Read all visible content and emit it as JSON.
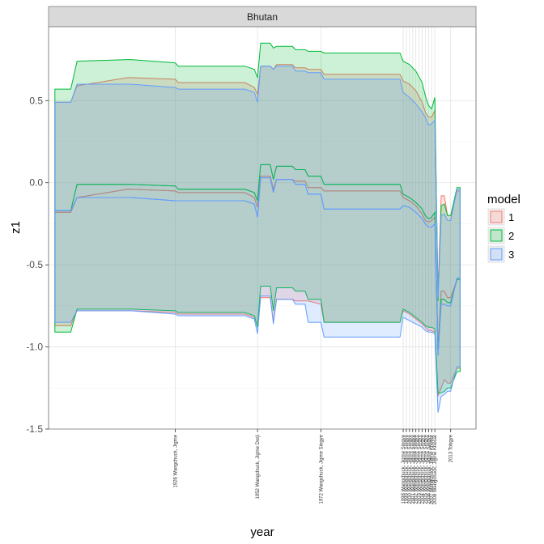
{
  "chart_data": {
    "type": "area",
    "panel_title": "Bhutan",
    "xlabel": "year",
    "ylabel": "z1",
    "xlim": [
      1886,
      2021
    ],
    "ylim": [
      -1.5,
      0.95
    ],
    "yticks": [
      0.5,
      0.0,
      -0.5,
      -1.0,
      -1.5
    ],
    "ytick_labels": [
      "0.5",
      "0.0",
      "-0.5",
      "-1.0",
      "-1.5"
    ],
    "xticks": [
      {
        "x": 1926,
        "label": "1926 Wangchuck, Jigme"
      },
      {
        "x": 1952,
        "label": "1952 Wangchuck, Jigme Dorji"
      },
      {
        "x": 1972,
        "label": "1972 Wangchuck, Jigme Singye"
      },
      {
        "x": 1998,
        "label": "1998 Wangchuck, Jigme Singye"
      },
      {
        "x": 1999,
        "label": "1999 Wangchuck, Jigme Singye"
      },
      {
        "x": 2000,
        "label": "2000 Wangchuck, Jigme Singye"
      },
      {
        "x": 2001,
        "label": "2001 Wangchuck, Jigme Singye"
      },
      {
        "x": 2002,
        "label": "2002 Wangchuck, Jigme Singye"
      },
      {
        "x": 2003,
        "label": "2003 Wangchuck, Jigme Singye"
      },
      {
        "x": 2004,
        "label": "2004 Wangchuck, Jigme Singye"
      },
      {
        "x": 2005,
        "label": "2005 Wangchuck, Jigme Singye"
      },
      {
        "x": 2006,
        "label": "2006 Wangchuck, Jigme Singye"
      },
      {
        "x": 2007,
        "label": "2007 Wangchuck, Jigme Khesar"
      },
      {
        "x": 2008,
        "label": "2008 Wangchuck, Jigme Khesar"
      },
      {
        "x": 2013,
        "label": "2013 Tobgye"
      }
    ],
    "legend": {
      "title": "model",
      "position": "right",
      "entries": [
        "1",
        "2",
        "3"
      ]
    },
    "grid": true,
    "series": [
      {
        "name": "1",
        "color": "#F8766D",
        "points": [
          [
            1888,
            0.49,
            -0.18,
            -0.87
          ],
          [
            1893,
            0.49,
            -0.18,
            -0.87
          ],
          [
            1895,
            0.59,
            -0.09,
            -0.78
          ],
          [
            1911,
            0.64,
            -0.04,
            -0.78
          ],
          [
            1912,
            0.64,
            -0.04,
            -0.78
          ],
          [
            1926,
            0.63,
            -0.05,
            -0.79
          ],
          [
            1927,
            0.61,
            -0.06,
            -0.8
          ],
          [
            1948,
            0.61,
            -0.06,
            -0.8
          ],
          [
            1951,
            0.58,
            -0.09,
            -0.82
          ],
          [
            1952,
            0.54,
            -0.15,
            -0.87
          ],
          [
            1953,
            0.71,
            0.04,
            -0.7
          ],
          [
            1956,
            0.71,
            0.04,
            -0.7
          ],
          [
            1957,
            0.69,
            -0.04,
            -0.85
          ],
          [
            1958,
            0.72,
            0.02,
            -0.71
          ],
          [
            1963,
            0.72,
            0.02,
            -0.71
          ],
          [
            1964,
            0.7,
            0.01,
            -0.72
          ],
          [
            1967,
            0.7,
            0.01,
            -0.72
          ],
          [
            1968,
            0.69,
            -0.03,
            -0.72
          ],
          [
            1972,
            0.69,
            -0.03,
            -0.74
          ],
          [
            1973,
            0.66,
            -0.05,
            -0.85
          ],
          [
            1997,
            0.66,
            -0.05,
            -0.85
          ],
          [
            1998,
            0.62,
            -0.09,
            -0.78
          ],
          [
            2000,
            0.6,
            -0.11,
            -0.8
          ],
          [
            2002,
            0.56,
            -0.14,
            -0.83
          ],
          [
            2004,
            0.49,
            -0.19,
            -0.86
          ],
          [
            2005,
            0.43,
            -0.23,
            -0.88
          ],
          [
            2006,
            0.4,
            -0.24,
            -0.9
          ],
          [
            2007,
            0.4,
            -0.23,
            -0.9
          ],
          [
            2008,
            0.44,
            -0.21,
            -0.91
          ],
          [
            2009,
            -0.66,
            -1.0,
            -1.3
          ],
          [
            2010,
            -0.08,
            -0.66,
            -1.25
          ],
          [
            2011,
            -0.08,
            -0.66,
            -1.2
          ],
          [
            2012,
            -0.2,
            -0.7,
            -1.22
          ],
          [
            2013,
            -0.2,
            -0.7,
            -1.22
          ],
          [
            2015,
            -0.05,
            -0.59,
            -1.13
          ],
          [
            2016,
            -0.05,
            -0.59,
            -1.13
          ]
        ]
      },
      {
        "name": "2",
        "color": "#00BA38",
        "points": [
          [
            1888,
            0.57,
            -0.17,
            -0.91
          ],
          [
            1893,
            0.57,
            -0.17,
            -0.91
          ],
          [
            1895,
            0.74,
            -0.01,
            -0.77
          ],
          [
            1911,
            0.75,
            -0.01,
            -0.77
          ],
          [
            1912,
            0.75,
            -0.01,
            -0.77
          ],
          [
            1926,
            0.73,
            -0.02,
            -0.78
          ],
          [
            1927,
            0.71,
            -0.04,
            -0.79
          ],
          [
            1948,
            0.71,
            -0.04,
            -0.79
          ],
          [
            1951,
            0.69,
            -0.06,
            -0.81
          ],
          [
            1952,
            0.64,
            -0.11,
            -0.88
          ],
          [
            1953,
            0.85,
            0.11,
            -0.63
          ],
          [
            1956,
            0.85,
            0.11,
            -0.63
          ],
          [
            1957,
            0.82,
            0.02,
            -0.78
          ],
          [
            1958,
            0.83,
            0.1,
            -0.64
          ],
          [
            1963,
            0.83,
            0.1,
            -0.64
          ],
          [
            1964,
            0.81,
            0.08,
            -0.66
          ],
          [
            1967,
            0.81,
            0.08,
            -0.66
          ],
          [
            1968,
            0.8,
            0.04,
            -0.71
          ],
          [
            1972,
            0.8,
            0.04,
            -0.71
          ],
          [
            1973,
            0.79,
            -0.01,
            -0.85
          ],
          [
            1997,
            0.79,
            -0.01,
            -0.85
          ],
          [
            1998,
            0.74,
            -0.07,
            -0.77
          ],
          [
            2000,
            0.72,
            -0.09,
            -0.79
          ],
          [
            2002,
            0.68,
            -0.12,
            -0.82
          ],
          [
            2004,
            0.61,
            -0.16,
            -0.85
          ],
          [
            2005,
            0.53,
            -0.2,
            -0.87
          ],
          [
            2006,
            0.47,
            -0.22,
            -0.88
          ],
          [
            2007,
            0.45,
            -0.21,
            -0.88
          ],
          [
            2008,
            0.52,
            -0.18,
            -0.89
          ],
          [
            2009,
            -0.72,
            -1.05,
            -1.28
          ],
          [
            2010,
            -0.14,
            -0.71,
            -1.28
          ],
          [
            2011,
            -0.13,
            -0.71,
            -1.27
          ],
          [
            2012,
            -0.2,
            -0.73,
            -1.25
          ],
          [
            2013,
            -0.2,
            -0.73,
            -1.25
          ],
          [
            2015,
            -0.03,
            -0.59,
            -1.15
          ],
          [
            2016,
            -0.03,
            -0.59,
            -1.15
          ]
        ]
      },
      {
        "name": "3",
        "color": "#619CFF",
        "points": [
          [
            1888,
            0.49,
            -0.17,
            -0.85
          ],
          [
            1893,
            0.49,
            -0.17,
            -0.85
          ],
          [
            1895,
            0.6,
            -0.09,
            -0.78
          ],
          [
            1911,
            0.6,
            -0.09,
            -0.78
          ],
          [
            1912,
            0.6,
            -0.09,
            -0.78
          ],
          [
            1926,
            0.58,
            -0.11,
            -0.8
          ],
          [
            1927,
            0.57,
            -0.11,
            -0.81
          ],
          [
            1948,
            0.57,
            -0.11,
            -0.81
          ],
          [
            1951,
            0.55,
            -0.13,
            -0.83
          ],
          [
            1952,
            0.49,
            -0.21,
            -0.92
          ],
          [
            1953,
            0.71,
            0.03,
            -0.69
          ],
          [
            1956,
            0.71,
            0.03,
            -0.69
          ],
          [
            1957,
            0.69,
            -0.06,
            -0.86
          ],
          [
            1958,
            0.71,
            0.02,
            -0.71
          ],
          [
            1963,
            0.71,
            0.02,
            -0.71
          ],
          [
            1964,
            0.68,
            -0.01,
            -0.74
          ],
          [
            1967,
            0.68,
            -0.01,
            -0.74
          ],
          [
            1968,
            0.67,
            -0.07,
            -0.85
          ],
          [
            1972,
            0.67,
            -0.07,
            -0.85
          ],
          [
            1973,
            0.63,
            -0.16,
            -0.94
          ],
          [
            1997,
            0.63,
            -0.16,
            -0.94
          ],
          [
            1998,
            0.55,
            -0.14,
            -0.82
          ],
          [
            2000,
            0.52,
            -0.15,
            -0.84
          ],
          [
            2002,
            0.48,
            -0.18,
            -0.86
          ],
          [
            2004,
            0.43,
            -0.22,
            -0.88
          ],
          [
            2005,
            0.4,
            -0.25,
            -0.9
          ],
          [
            2006,
            0.35,
            -0.27,
            -0.91
          ],
          [
            2007,
            0.36,
            -0.27,
            -0.91
          ],
          [
            2008,
            0.38,
            -0.25,
            -0.92
          ],
          [
            2009,
            -0.7,
            -1.05,
            -1.4
          ],
          [
            2010,
            -0.2,
            -0.74,
            -1.3
          ],
          [
            2011,
            -0.19,
            -0.74,
            -1.29
          ],
          [
            2012,
            -0.23,
            -0.75,
            -1.27
          ],
          [
            2013,
            -0.23,
            -0.75,
            -1.27
          ],
          [
            2015,
            -0.04,
            -0.58,
            -1.12
          ],
          [
            2016,
            -0.04,
            -0.58,
            -1.12
          ]
        ]
      }
    ]
  }
}
